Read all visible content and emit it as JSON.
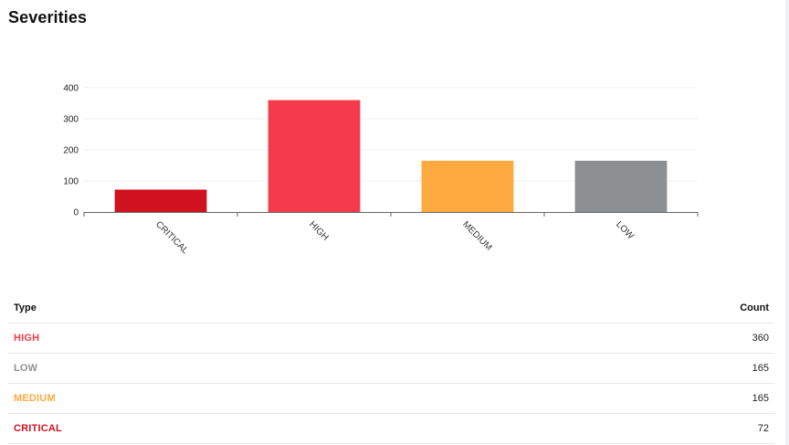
{
  "title": "Severities",
  "colors": {
    "CRITICAL": "#d0121f",
    "HIGH": "#f43b4b",
    "MEDIUM": "#ffaa40",
    "LOW": "#8d9093"
  },
  "chart_data": {
    "type": "bar",
    "categories": [
      "CRITICAL",
      "HIGH",
      "MEDIUM",
      "LOW"
    ],
    "values": [
      72,
      360,
      165,
      165
    ],
    "ylim": [
      0,
      400
    ],
    "yticks": [
      0,
      100,
      200,
      300,
      400
    ],
    "grid": true
  },
  "table": {
    "headers": {
      "type": "Type",
      "count": "Count"
    },
    "rows": [
      {
        "type": "HIGH",
        "count": "360"
      },
      {
        "type": "LOW",
        "count": "165"
      },
      {
        "type": "MEDIUM",
        "count": "165"
      },
      {
        "type": "CRITICAL",
        "count": "72"
      }
    ]
  }
}
